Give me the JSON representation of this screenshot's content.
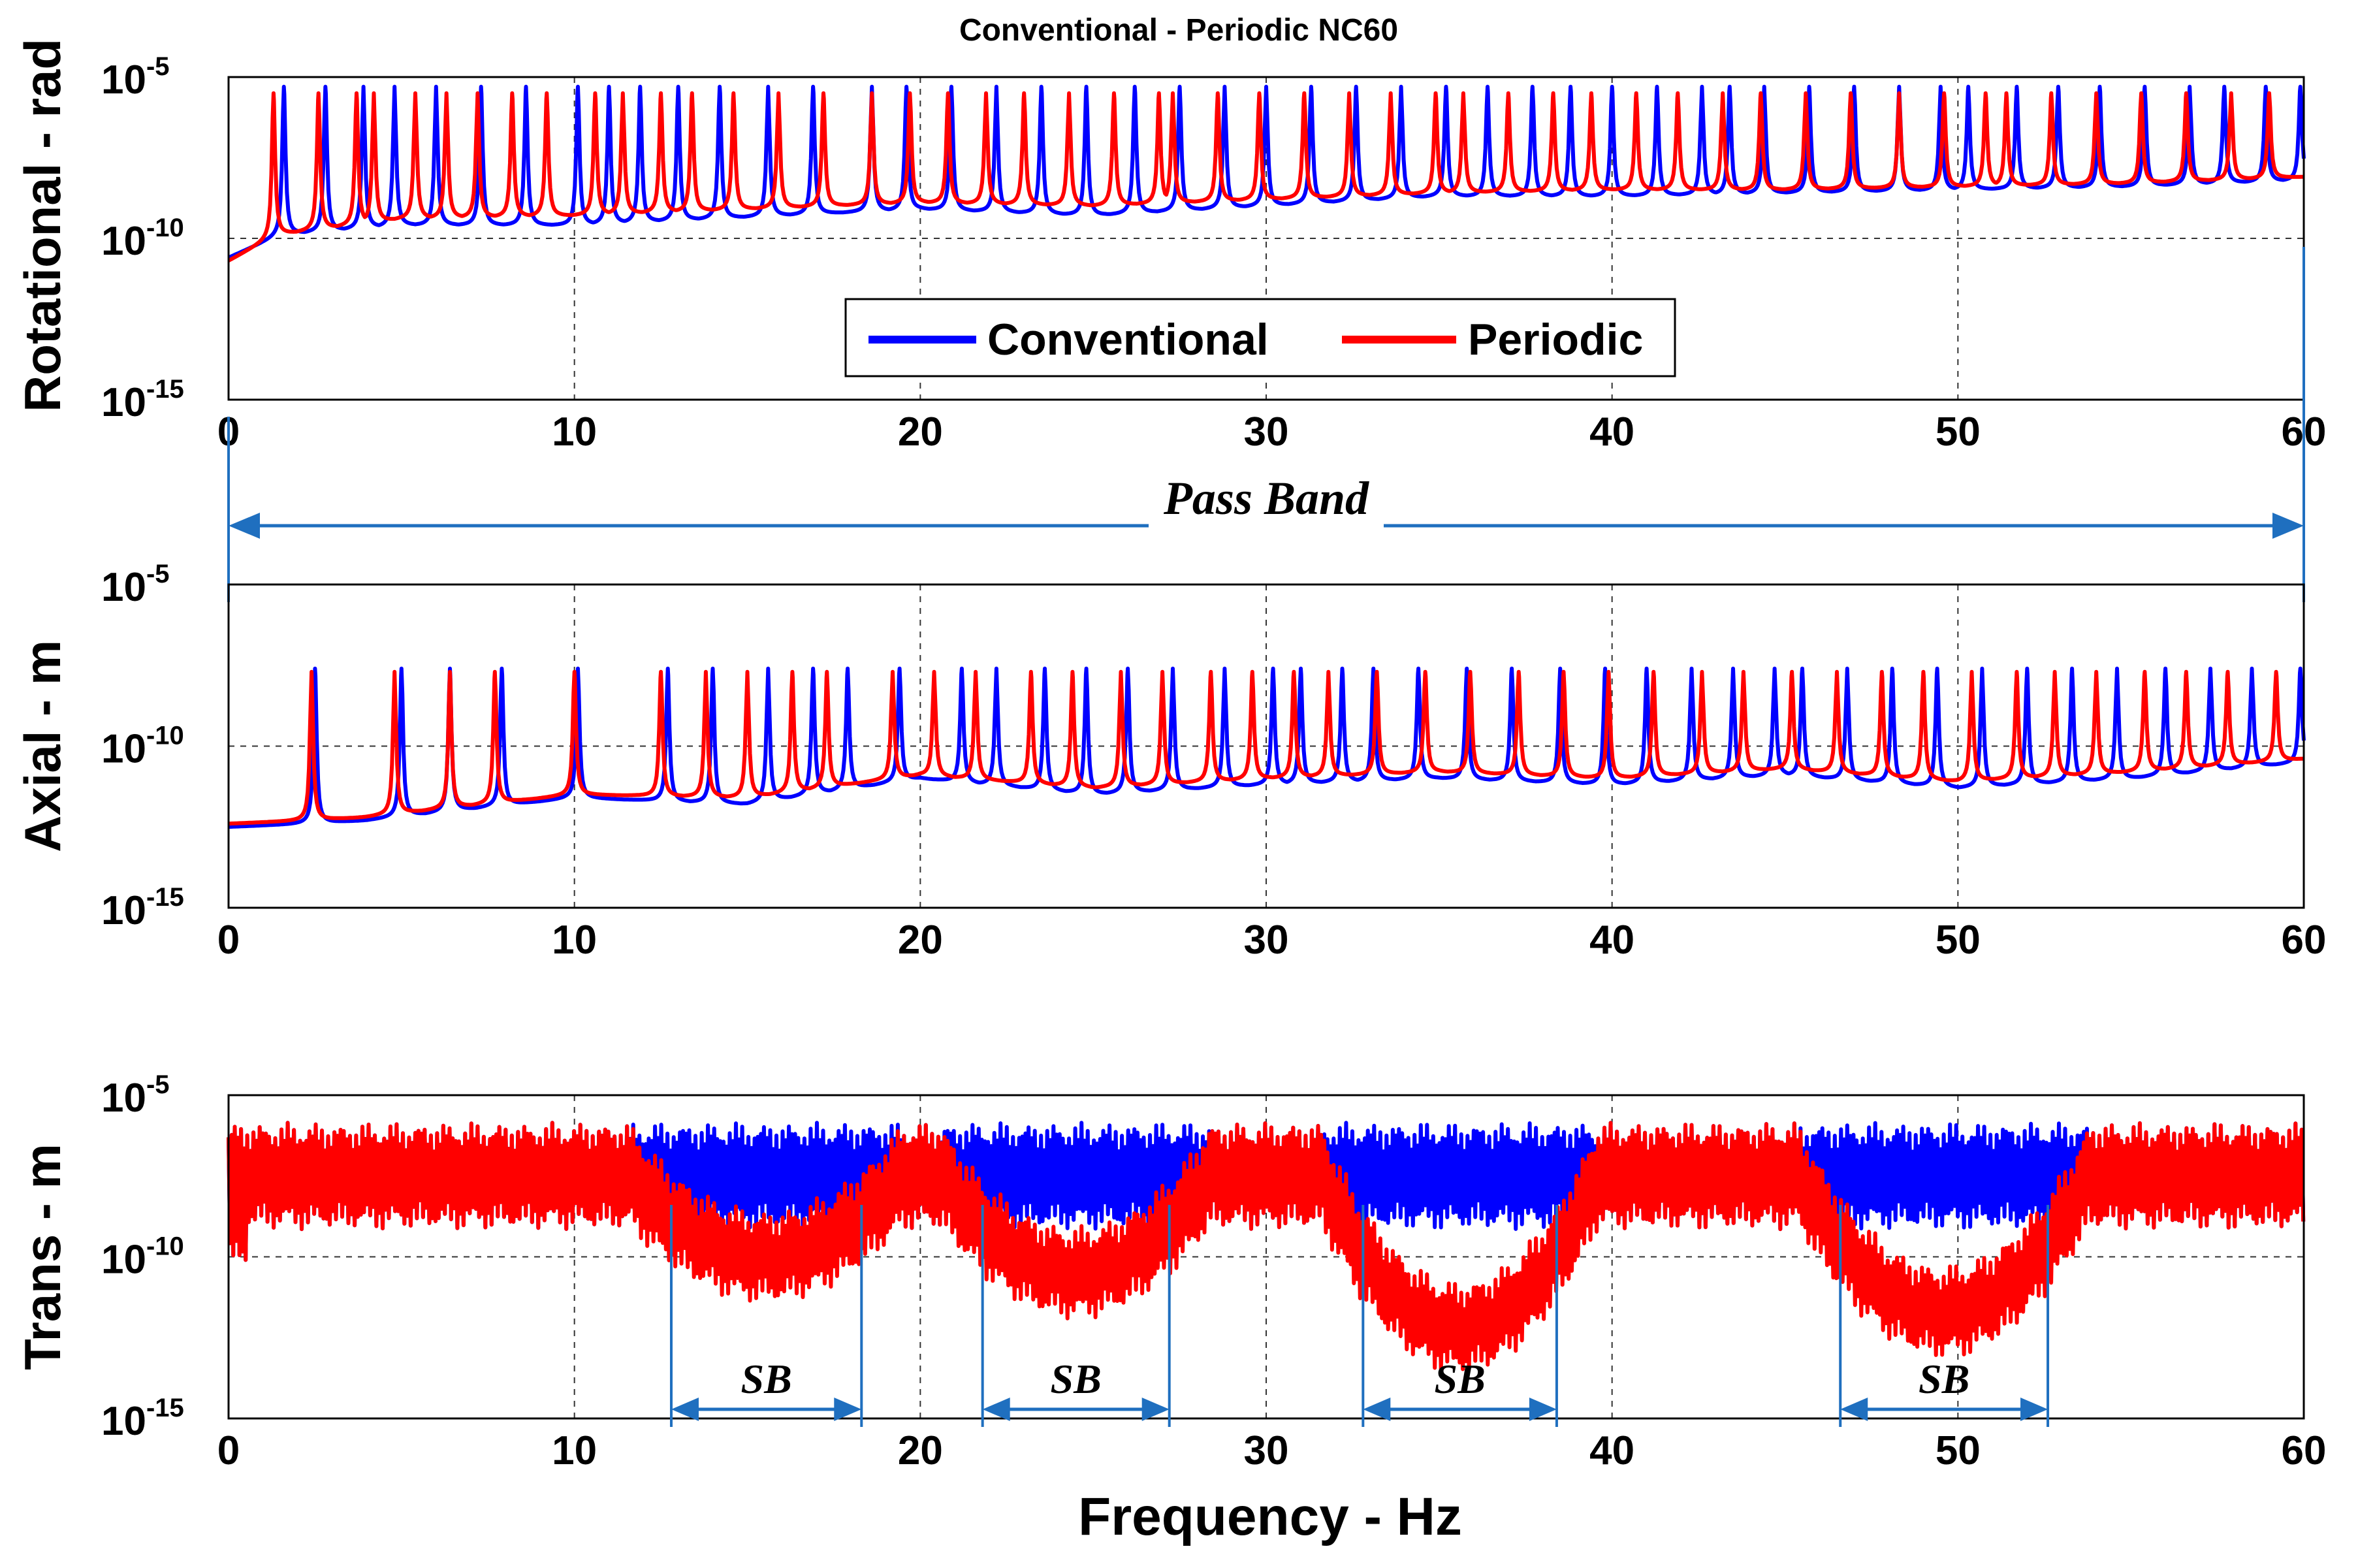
{
  "colors": {
    "conventional": "#0000ff",
    "periodic": "#ff0000",
    "annotation": "#1f6fbf"
  },
  "figure": {
    "title": "Conventional - Periodic NC60",
    "xlabel": "Frequency - Hz"
  },
  "legend": {
    "items": [
      {
        "label": "Conventional",
        "color": "#0000ff"
      },
      {
        "label": "Periodic",
        "color": "#ff0000"
      }
    ]
  },
  "chart_data": [
    {
      "type": "line",
      "panel": "rotational",
      "ylabel": "Rotational - rad",
      "xlim": [
        0,
        60
      ],
      "ylim_exp": [
        -15,
        -5
      ],
      "xticks": [
        "0",
        "10",
        "20",
        "30",
        "40",
        "50",
        "60"
      ],
      "yticks": [
        {
          "base": "10",
          "exp": "-5"
        },
        {
          "base": "10",
          "exp": "-10"
        },
        {
          "base": "10",
          "exp": "-15"
        }
      ],
      "series": [
        {
          "name": "Conventional",
          "baseline": [
            [
              0,
              -10.6
            ],
            [
              1.5,
              -9.9
            ],
            [
              5,
              -9.6
            ],
            [
              10,
              -9.6
            ],
            [
              20,
              -9.1
            ],
            [
              25,
              -9.3
            ],
            [
              30,
              -9.0
            ],
            [
              35,
              -8.7
            ],
            [
              40,
              -8.7
            ],
            [
              45,
              -8.6
            ],
            [
              50,
              -8.5
            ],
            [
              55,
              -8.4
            ],
            [
              60,
              -8.2
            ]
          ],
          "peaks": [
            1.6,
            2.8,
            3.9,
            4.8,
            6.0,
            7.3,
            8.6,
            10.1,
            11.0,
            11.9,
            13.0,
            14.2,
            15.6,
            16.9,
            18.6,
            19.6,
            20.9,
            22.2,
            23.5,
            24.8,
            26.2,
            27.5,
            28.8,
            30.0,
            31.3,
            32.6,
            33.9,
            35.2,
            36.4,
            37.7,
            38.8,
            40.0,
            41.3,
            42.6,
            43.4,
            44.4,
            45.7,
            47.0,
            48.3,
            49.5,
            50.3,
            51.7,
            52.9,
            54.1,
            55.4,
            56.7,
            57.7,
            58.9,
            59.9
          ],
          "peak_level_exp": -5.3
        },
        {
          "name": "Periodic",
          "baseline": [
            [
              0,
              -10.7
            ],
            [
              1.4,
              -9.9
            ],
            [
              5,
              -9.4
            ],
            [
              10,
              -9.3
            ],
            [
              20,
              -8.9
            ],
            [
              25,
              -9.0
            ],
            [
              30,
              -8.8
            ],
            [
              35,
              -8.6
            ],
            [
              40,
              -8.5
            ],
            [
              45,
              -8.5
            ],
            [
              50,
              -8.4
            ],
            [
              55,
              -8.3
            ],
            [
              60,
              -8.1
            ]
          ],
          "peaks": [
            1.3,
            2.6,
            3.7,
            4.2,
            5.4,
            6.3,
            7.2,
            8.2,
            9.2,
            10.6,
            11.4,
            12.5,
            13.4,
            14.6,
            15.9,
            17.2,
            18.6,
            19.7,
            20.8,
            21.9,
            23.0,
            24.3,
            25.6,
            26.9,
            27.3,
            28.6,
            29.8,
            31.1,
            32.4,
            33.6,
            34.9,
            35.7,
            37.0,
            38.3,
            39.4,
            40.7,
            41.9,
            43.2,
            44.3,
            45.6,
            46.9,
            48.3,
            49.6,
            50.8,
            51.4,
            52.7,
            54.0,
            55.3,
            56.6,
            57.9,
            59.0
          ],
          "peak_level_exp": -5.5
        }
      ],
      "annotations": [
        {
          "text": "Pass Band",
          "from": 0,
          "to": 60
        }
      ]
    },
    {
      "type": "line",
      "panel": "axial",
      "ylabel": "Axial - m",
      "xlim": [
        0,
        60
      ],
      "ylim_exp": [
        -15,
        -5
      ],
      "xticks": [
        "0",
        "10",
        "20",
        "30",
        "40",
        "50",
        "60"
      ],
      "yticks": [
        {
          "base": "10",
          "exp": "-5"
        },
        {
          "base": "10",
          "exp": "-10"
        },
        {
          "base": "10",
          "exp": "-15"
        }
      ],
      "series": [
        {
          "name": "Conventional",
          "baseline": [
            [
              0,
              -12.5
            ],
            [
              2.4,
              -12.4
            ],
            [
              4,
              -12.3
            ],
            [
              10,
              -11.6
            ],
            [
              15,
              -11.8
            ],
            [
              20,
              -11.0
            ],
            [
              25,
              -11.5
            ],
            [
              30,
              -11.2
            ],
            [
              35,
              -11.0
            ],
            [
              40,
              -11.2
            ],
            [
              45,
              -10.9
            ],
            [
              50,
              -11.3
            ],
            [
              55,
              -11.0
            ],
            [
              60,
              -10.5
            ]
          ],
          "peaks": [
            2.5,
            5.0,
            6.4,
            7.9,
            10.1,
            12.7,
            14.0,
            15.6,
            16.9,
            17.9,
            19.4,
            21.2,
            22.2,
            23.6,
            24.8,
            26.0,
            27.3,
            28.8,
            30.2,
            31.0,
            32.2,
            33.1,
            34.4,
            35.8,
            37.1,
            38.5,
            39.8,
            41.0,
            42.3,
            43.5,
            44.7,
            45.5,
            46.8,
            48.1,
            49.4,
            50.7,
            52.0,
            53.3,
            54.6,
            56.0,
            57.3,
            58.5,
            59.9
          ],
          "peak_level_exp": -7.6
        },
        {
          "name": "Periodic",
          "baseline": [
            [
              0,
              -12.4
            ],
            [
              2.4,
              -12.3
            ],
            [
              4,
              -12.2
            ],
            [
              10,
              -11.5
            ],
            [
              15,
              -11.6
            ],
            [
              20,
              -10.9
            ],
            [
              25,
              -11.3
            ],
            [
              30,
              -11.0
            ],
            [
              35,
              -10.8
            ],
            [
              40,
              -11.0
            ],
            [
              45,
              -10.7
            ],
            [
              50,
              -11.1
            ],
            [
              55,
              -10.8
            ],
            [
              60,
              -10.4
            ]
          ],
          "peaks": [
            2.4,
            4.8,
            6.4,
            7.7,
            10.0,
            12.5,
            13.8,
            15.0,
            16.3,
            17.3,
            19.2,
            20.4,
            21.6,
            23.2,
            24.4,
            25.8,
            27.0,
            28.4,
            29.6,
            30.8,
            31.8,
            33.2,
            34.6,
            35.9,
            37.3,
            38.6,
            39.9,
            41.2,
            42.6,
            43.8,
            45.2,
            46.5,
            47.8,
            49.0,
            50.4,
            51.7,
            52.8,
            54.0,
            55.4,
            56.6,
            57.8,
            59.2
          ],
          "peak_level_exp": -7.7
        }
      ]
    },
    {
      "type": "line",
      "panel": "trans",
      "ylabel": "Trans - m",
      "xlim": [
        0,
        60
      ],
      "ylim_exp": [
        -15,
        -5
      ],
      "xticks": [
        "0",
        "10",
        "20",
        "30",
        "40",
        "50",
        "60"
      ],
      "yticks": [
        {
          "base": "10",
          "exp": "-5"
        },
        {
          "base": "10",
          "exp": "-10"
        },
        {
          "base": "10",
          "exp": "-15"
        }
      ],
      "series": [
        {
          "name": "Conventional",
          "upper_exp": -6.3,
          "lower_exp": -8.7
        },
        {
          "name": "Periodic",
          "upper_exp": -6.3,
          "lower_exp": -8.7,
          "notches": [
            [
              12.8,
              18.3,
              -11.0
            ],
            [
              21.8,
              27.2,
              -11.5
            ],
            [
              32.8,
              38.4,
              -13.2
            ],
            [
              46.6,
              52.6,
              -12.7
            ]
          ]
        }
      ],
      "annotations": [
        {
          "text": "SB",
          "from": 12.8,
          "to": 18.3
        },
        {
          "text": "SB",
          "from": 21.8,
          "to": 27.2
        },
        {
          "text": "SB",
          "from": 32.8,
          "to": 38.4
        },
        {
          "text": "SB",
          "from": 46.6,
          "to": 52.6
        }
      ]
    }
  ]
}
